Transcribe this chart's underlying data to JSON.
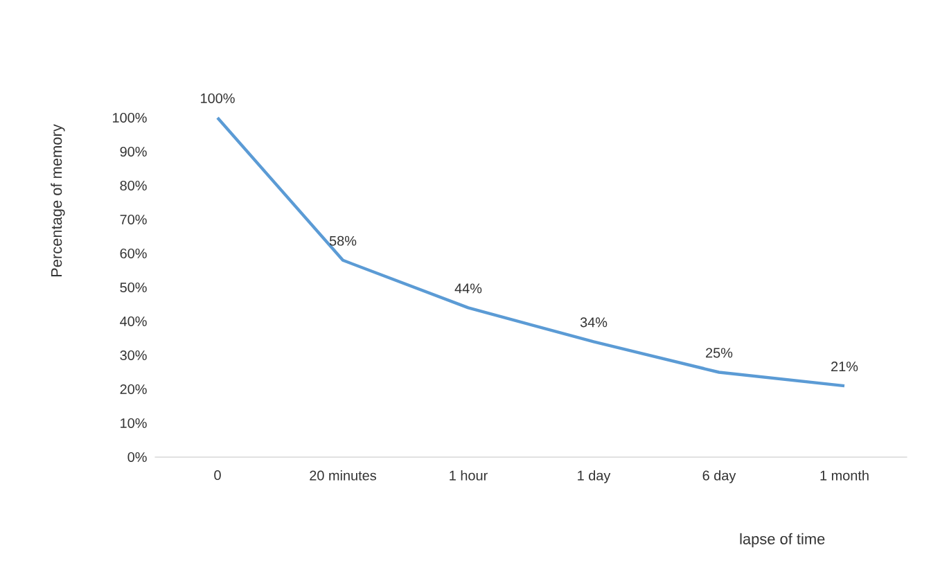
{
  "chart_data": {
    "type": "line",
    "xlabel": "lapse of time",
    "ylabel": "Percentage of memory",
    "categories": [
      "0",
      "20 minutes",
      "1 hour",
      "1 day",
      "6 day",
      "1 month"
    ],
    "values": [
      100,
      58,
      44,
      34,
      25,
      21
    ],
    "value_labels": [
      "100%",
      "58%",
      "44%",
      "34%",
      "25%",
      "21%"
    ],
    "color": "#5b9bd5",
    "marker": "none",
    "line_style": "solid",
    "ylim": [
      0,
      100
    ],
    "yticks": [
      {
        "value": 0,
        "label": "0%"
      },
      {
        "value": 10,
        "label": "10%"
      },
      {
        "value": 20,
        "label": "20%"
      },
      {
        "value": 30,
        "label": "30%"
      },
      {
        "value": 40,
        "label": "40%"
      },
      {
        "value": 50,
        "label": "50%"
      },
      {
        "value": 60,
        "label": "60%"
      },
      {
        "value": 70,
        "label": "70%"
      },
      {
        "value": 80,
        "label": "80%"
      },
      {
        "value": 90,
        "label": "90%"
      },
      {
        "value": 100,
        "label": "100%"
      }
    ]
  }
}
